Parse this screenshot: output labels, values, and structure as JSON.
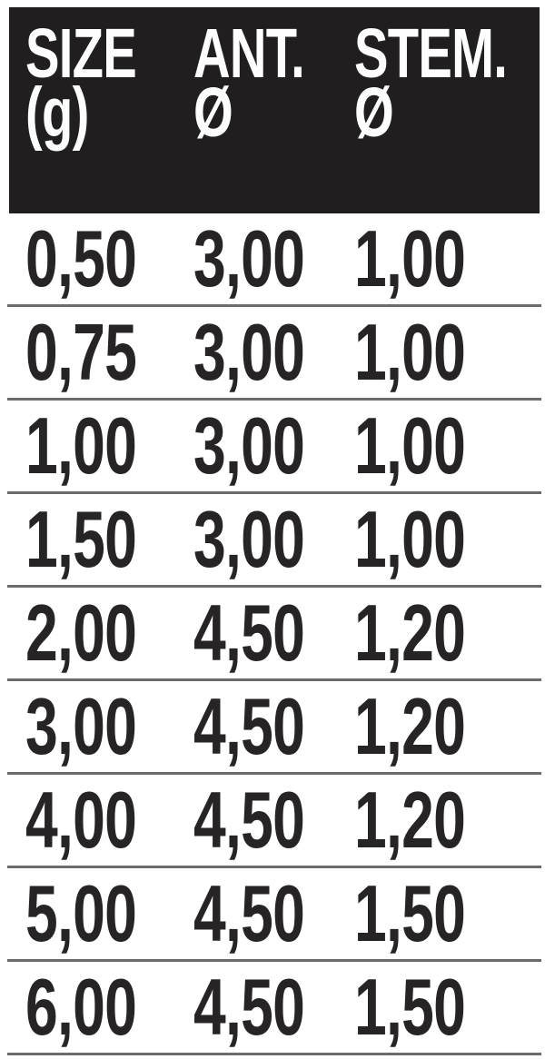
{
  "chart_data": {
    "type": "table",
    "title": "",
    "columns": [
      "SIZE (g)",
      "ANT. Ø",
      "STEM. Ø"
    ],
    "rows": [
      [
        "0,50",
        "3,00",
        "1,00"
      ],
      [
        "0,75",
        "3,00",
        "1,00"
      ],
      [
        "1,00",
        "3,00",
        "1,00"
      ],
      [
        "1,50",
        "3,00",
        "1,00"
      ],
      [
        "2,00",
        "4,50",
        "1,20"
      ],
      [
        "3,00",
        "4,50",
        "1,20"
      ],
      [
        "4,00",
        "4,50",
        "1,20"
      ],
      [
        "5,00",
        "4,50",
        "1,50"
      ],
      [
        "6,00",
        "4,50",
        "1,50"
      ]
    ],
    "layout": {
      "header_style": "black band, white condensed bold text",
      "grid": "horizontal gray dividers between rows, no vertical lines"
    }
  },
  "header_display": {
    "col1": {
      "line1": "SIZE",
      "line2": "(g)"
    },
    "col2": {
      "line1": "ANT.",
      "line2": "Ø"
    },
    "col3": {
      "line1": "STEM.",
      "line2": "Ø"
    }
  },
  "colors": {
    "header_bg": "#211e1f",
    "header_text": "#fdfdfd",
    "cell_text": "#272425",
    "divider": "#6b6b6b",
    "background": "#ffffff"
  }
}
